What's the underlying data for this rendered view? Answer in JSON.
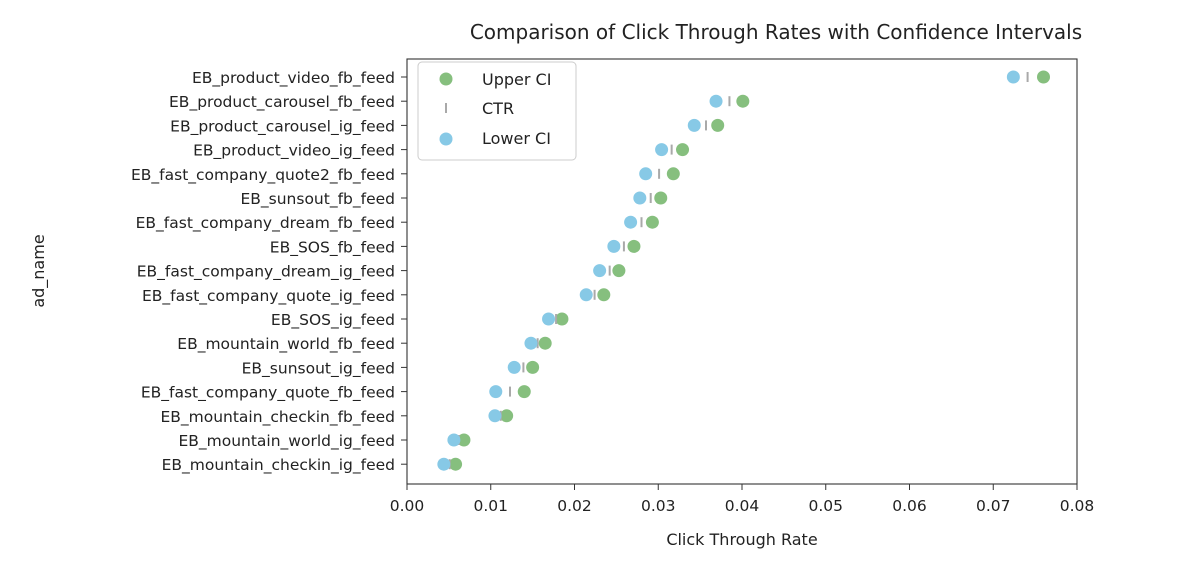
{
  "chart_data": {
    "type": "scatter",
    "title": "Comparison of Click Through Rates with Confidence Intervals",
    "xlabel": "Click Through Rate",
    "ylabel": "ad_name",
    "xlim": [
      0.0,
      0.08
    ],
    "xticks": [
      "0.00",
      "0.01",
      "0.02",
      "0.03",
      "0.04",
      "0.05",
      "0.06",
      "0.07",
      "0.08"
    ],
    "grid": false,
    "legend_position": "top-left",
    "categories": [
      "EB_product_video_fb_feed",
      "EB_product_carousel_fb_feed",
      "EB_product_carousel_ig_feed",
      "EB_product_video_ig_feed",
      "EB_fast_company_quote2_fb_feed",
      "EB_sunsout_fb_feed",
      "EB_fast_company_dream_fb_feed",
      "EB_SOS_fb_feed",
      "EB_fast_company_dream_ig_feed",
      "EB_fast_company_quote_ig_feed",
      "EB_SOS_ig_feed",
      "EB_mountain_world_fb_feed",
      "EB_sunsout_ig_feed",
      "EB_fast_company_quote_fb_feed",
      "EB_mountain_checkin_fb_feed",
      "EB_mountain_world_ig_feed",
      "EB_mountain_checkin_ig_feed"
    ],
    "series": [
      {
        "name": "Upper CI",
        "marker": "circle",
        "color": "#86bf7e",
        "values": [
          0.076,
          0.0401,
          0.0371,
          0.0329,
          0.0318,
          0.0303,
          0.0293,
          0.0271,
          0.0253,
          0.0235,
          0.0185,
          0.0165,
          0.015,
          0.014,
          0.0119,
          0.0068,
          0.0058
        ]
      },
      {
        "name": "CTR",
        "marker": "vline",
        "color": "#a9a9a9",
        "values": [
          0.0741,
          0.0385,
          0.0357,
          0.0316,
          0.0301,
          0.0291,
          0.028,
          0.0259,
          0.0242,
          0.0224,
          0.0178,
          0.0156,
          0.0139,
          0.0123,
          0.0112,
          0.0062,
          0.0051
        ]
      },
      {
        "name": "Lower CI",
        "marker": "circle",
        "color": "#87c9e6",
        "values": [
          0.0724,
          0.0369,
          0.0343,
          0.0304,
          0.0285,
          0.0278,
          0.0267,
          0.0247,
          0.023,
          0.0214,
          0.0169,
          0.0148,
          0.0128,
          0.0106,
          0.0105,
          0.0056,
          0.0044
        ]
      }
    ]
  }
}
